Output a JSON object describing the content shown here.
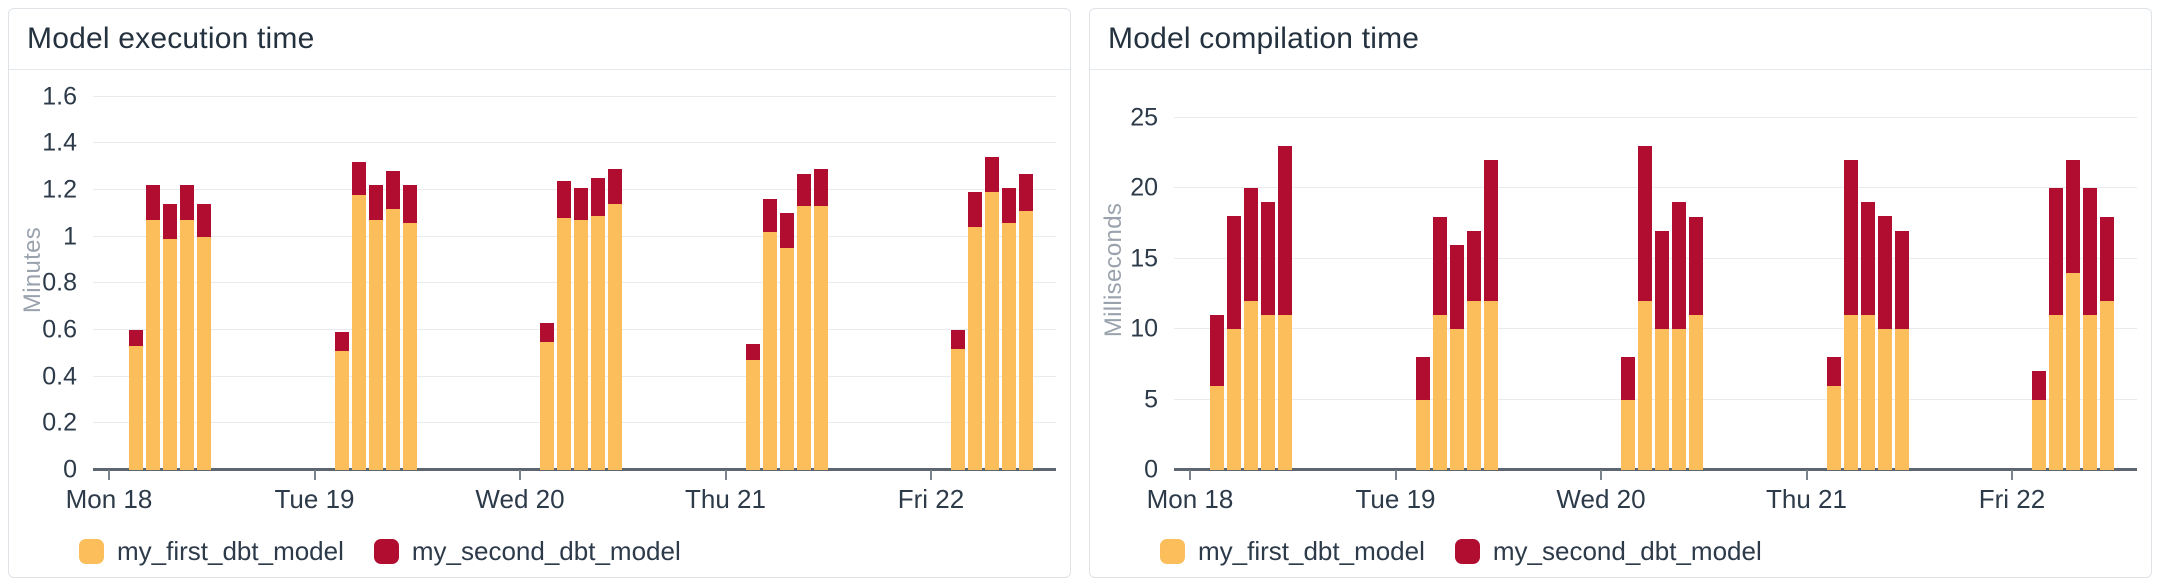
{
  "chart_data": [
    {
      "type": "bar",
      "stacked": true,
      "title": "Model execution time",
      "ylabel": "Minutes",
      "xlabel": "",
      "categories": [
        "Mon 18",
        "Tue 19",
        "Wed 20",
        "Thu 21",
        "Fri 22"
      ],
      "bars_per_category": 5,
      "yticks": [
        0,
        0.2,
        0.4,
        0.6,
        0.8,
        1,
        1.2,
        1.4,
        1.6
      ],
      "ylim": [
        0,
        1.715
      ],
      "grid": true,
      "legend_position": "bottom",
      "series": [
        {
          "name": "my_first_dbt_model",
          "color": "#FBBE5B",
          "values": [
            [
              0.53,
              1.07,
              0.99,
              1.07,
              1.0
            ],
            [
              0.51,
              1.18,
              1.07,
              1.12,
              1.06
            ],
            [
              0.55,
              1.08,
              1.07,
              1.09,
              1.14
            ],
            [
              0.47,
              1.02,
              0.95,
              1.13,
              1.13
            ],
            [
              0.52,
              1.04,
              1.19,
              1.06,
              1.11
            ]
          ]
        },
        {
          "name": "my_second_dbt_model",
          "color": "#B00D31",
          "values": [
            [
              0.07,
              0.15,
              0.15,
              0.15,
              0.14
            ],
            [
              0.08,
              0.14,
              0.15,
              0.16,
              0.16
            ],
            [
              0.08,
              0.16,
              0.14,
              0.16,
              0.15
            ],
            [
              0.07,
              0.14,
              0.15,
              0.14,
              0.16
            ],
            [
              0.08,
              0.15,
              0.15,
              0.15,
              0.16
            ]
          ]
        }
      ]
    },
    {
      "type": "bar",
      "stacked": true,
      "title": "Model compilation time",
      "ylabel": "Milliseconds",
      "xlabel": "",
      "categories": [
        "Mon 18",
        "Tue 19",
        "Wed 20",
        "Thu 21",
        "Fri 22"
      ],
      "bars_per_category": 5,
      "yticks": [
        0,
        5,
        10,
        15,
        20,
        25
      ],
      "ylim": [
        0,
        28.4
      ],
      "grid": true,
      "legend_position": "bottom",
      "series": [
        {
          "name": "my_first_dbt_model",
          "color": "#FBBE5B",
          "values": [
            [
              6,
              10,
              12,
              11,
              11
            ],
            [
              5,
              11,
              10,
              12,
              12
            ],
            [
              5,
              12,
              10,
              10,
              11
            ],
            [
              6,
              11,
              11,
              10,
              10
            ],
            [
              5,
              11,
              14,
              11,
              12
            ]
          ]
        },
        {
          "name": "my_second_dbt_model",
          "color": "#B00D31",
          "values": [
            [
              5,
              8,
              8,
              8,
              12
            ],
            [
              3,
              7,
              6,
              5,
              10
            ],
            [
              3,
              11,
              7,
              9,
              7
            ],
            [
              2,
              11,
              8,
              8,
              7
            ],
            [
              2,
              9,
              8,
              9,
              6
            ]
          ]
        }
      ]
    }
  ]
}
